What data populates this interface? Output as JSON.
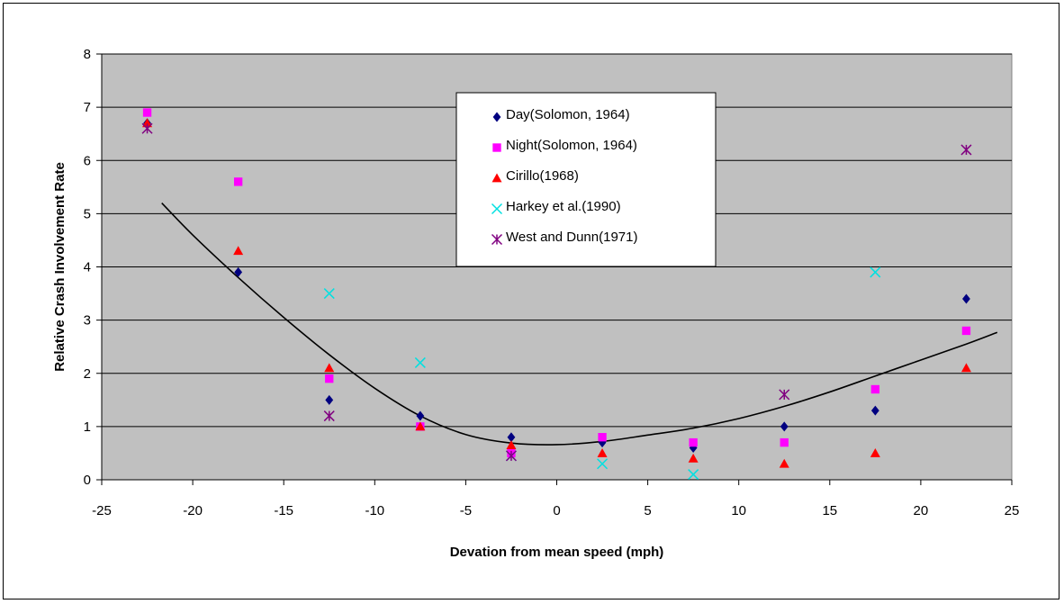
{
  "chart_data": {
    "type": "scatter",
    "title": "",
    "xlabel": "Devation from mean speed (mph)",
    "ylabel": "Relative Crash Involvement Rate",
    "xlim": [
      -25,
      25
    ],
    "ylim": [
      0,
      8
    ],
    "x_ticks": [
      "-25",
      "-20",
      "-15",
      "-10",
      "-5",
      "0",
      "5",
      "10",
      "15",
      "20",
      "25"
    ],
    "y_ticks": [
      "0",
      "1",
      "2",
      "3",
      "4",
      "5",
      "6",
      "7",
      "8"
    ],
    "grid": "horizontal",
    "plot_background": "#c0c0c0",
    "legend_position": "top-center inside plot",
    "series": [
      {
        "name": "Day(Solomon, 1964)",
        "marker": "diamond",
        "color": "#000080",
        "points": [
          [
            -22.5,
            6.7
          ],
          [
            -17.5,
            3.9
          ],
          [
            -12.5,
            1.5
          ],
          [
            -7.5,
            1.2
          ],
          [
            -2.5,
            0.8
          ],
          [
            2.5,
            0.7
          ],
          [
            7.5,
            0.6
          ],
          [
            12.5,
            1.0
          ],
          [
            17.5,
            1.3
          ],
          [
            22.5,
            3.4
          ]
        ]
      },
      {
        "name": "Night(Solomon, 1964)",
        "marker": "square",
        "color": "#ff00ff",
        "points": [
          [
            -22.5,
            6.9
          ],
          [
            -17.5,
            5.6
          ],
          [
            -12.5,
            1.9
          ],
          [
            -7.5,
            1.0
          ],
          [
            -2.5,
            0.5
          ],
          [
            2.5,
            0.8
          ],
          [
            7.5,
            0.7
          ],
          [
            12.5,
            0.7
          ],
          [
            17.5,
            1.7
          ],
          [
            22.5,
            2.8
          ]
        ]
      },
      {
        "name": "Cirillo(1968)",
        "marker": "triangle",
        "color": "#ff0000",
        "points": [
          [
            -22.5,
            6.7
          ],
          [
            -17.5,
            4.3
          ],
          [
            -12.5,
            2.1
          ],
          [
            -7.5,
            1.0
          ],
          [
            -2.5,
            0.65
          ],
          [
            2.5,
            0.5
          ],
          [
            7.5,
            0.4
          ],
          [
            12.5,
            0.3
          ],
          [
            17.5,
            0.5
          ],
          [
            22.5,
            2.1
          ]
        ]
      },
      {
        "name": "Harkey et al.(1990)",
        "marker": "x",
        "color": "#00e0e0",
        "points": [
          [
            -12.5,
            3.5
          ],
          [
            -7.5,
            2.2
          ],
          [
            -2.5,
            0.45
          ],
          [
            2.5,
            0.3
          ],
          [
            7.5,
            0.1
          ],
          [
            17.5,
            3.9
          ]
        ]
      },
      {
        "name": "West and Dunn(1971)",
        "marker": "star",
        "color": "#800080",
        "points": [
          [
            -22.5,
            6.6
          ],
          [
            -12.5,
            1.2
          ],
          [
            -2.5,
            0.45
          ],
          [
            12.5,
            1.6
          ],
          [
            22.5,
            6.2
          ]
        ]
      }
    ],
    "trendline": {
      "color": "#000000",
      "points": [
        [
          -21.7,
          5.2
        ],
        [
          -20,
          4.6
        ],
        [
          -17.5,
          3.8
        ],
        [
          -15,
          3.05
        ],
        [
          -12.5,
          2.35
        ],
        [
          -10,
          1.72
        ],
        [
          -7.5,
          1.2
        ],
        [
          -5,
          0.85
        ],
        [
          -2.5,
          0.69
        ],
        [
          0,
          0.66
        ],
        [
          2.5,
          0.72
        ],
        [
          5,
          0.84
        ],
        [
          7.5,
          0.97
        ],
        [
          10,
          1.15
        ],
        [
          12.5,
          1.38
        ],
        [
          15,
          1.65
        ],
        [
          17.5,
          1.95
        ],
        [
          20,
          2.25
        ],
        [
          22.5,
          2.55
        ],
        [
          24.2,
          2.77
        ]
      ]
    }
  }
}
